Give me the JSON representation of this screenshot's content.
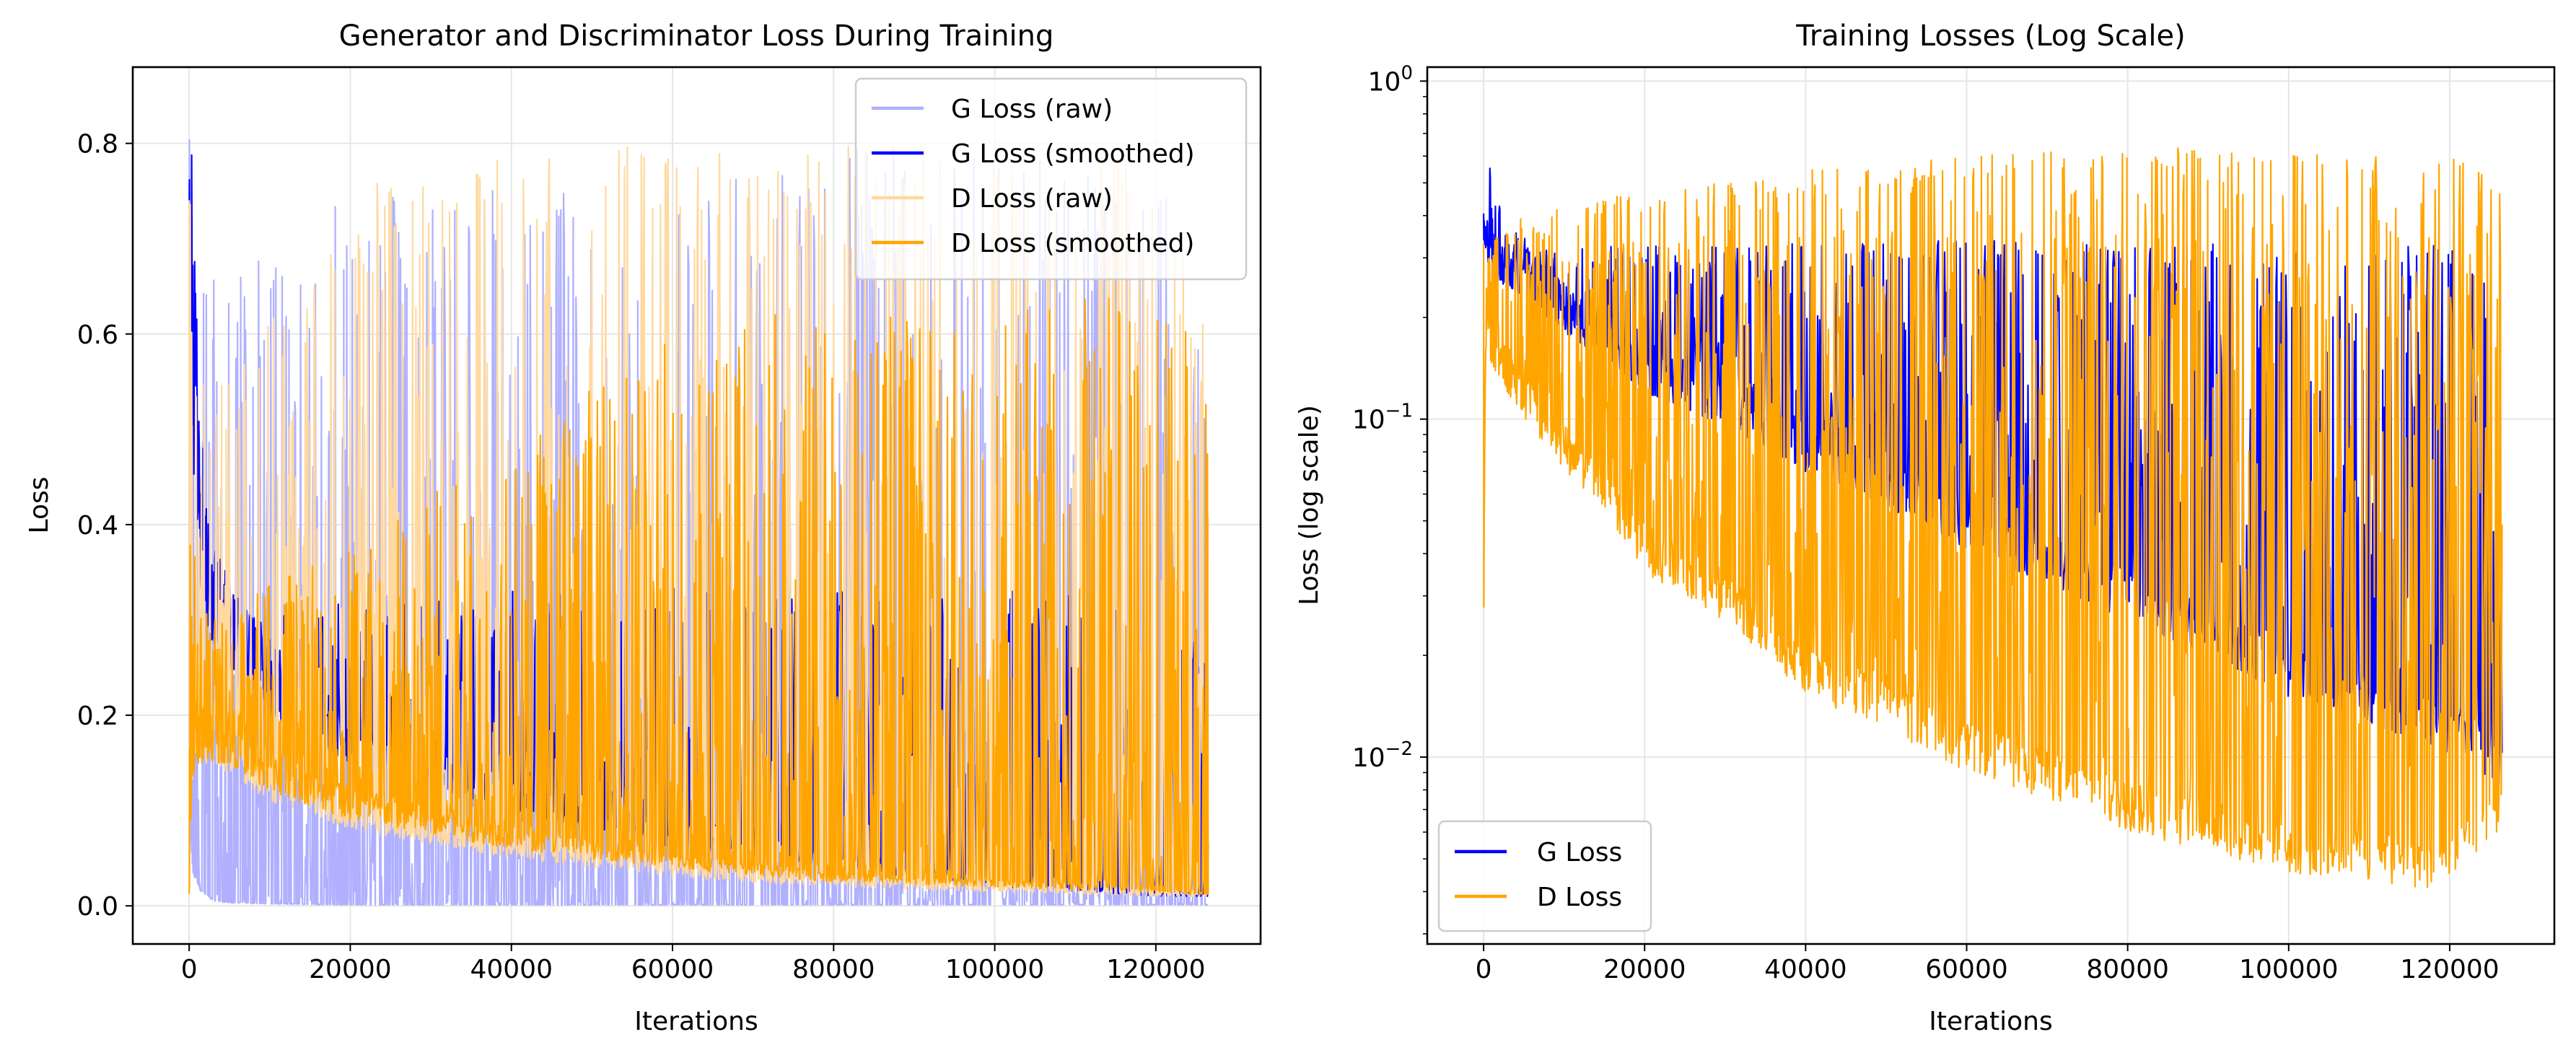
{
  "chart_data": [
    {
      "type": "line",
      "title": "Generator and Discriminator Loss During Training",
      "xlabel": "Iterations",
      "ylabel": "Loss",
      "xlim": [
        -7000,
        133000
      ],
      "ylim": [
        -0.04,
        0.88
      ],
      "xticks": [
        0,
        20000,
        40000,
        60000,
        80000,
        100000,
        120000
      ],
      "xtick_labels": [
        "0",
        "20000",
        "40000",
        "60000",
        "80000",
        "100000",
        "120000"
      ],
      "yticks": [
        0.0,
        0.2,
        0.4,
        0.6,
        0.8
      ],
      "ytick_labels": [
        "0.0",
        "0.2",
        "0.4",
        "0.6",
        "0.8"
      ],
      "grid": true,
      "legend_position": "top-right",
      "series": [
        {
          "name": "G Loss (raw)",
          "color": "#b0b0ff",
          "x": [
            0,
            200,
            500,
            1000,
            2000,
            3000,
            5000,
            10000,
            20000,
            40000,
            60000,
            80000,
            100000,
            120000,
            126500
          ],
          "peak": [
            0.81,
            0.81,
            0.78,
            0.72,
            0.68,
            0.66,
            0.67,
            0.68,
            0.75,
            0.76,
            0.74,
            0.8,
            0.79,
            0.8,
            0.58
          ],
          "floor": [
            0.12,
            0.05,
            0.03,
            0.02,
            0.01,
            0.005,
            0.003,
            0.002,
            0.001,
            0.001,
            0.001,
            0.001,
            0.001,
            0.001,
            0.001
          ]
        },
        {
          "name": "G Loss (smoothed)",
          "color": "#0000ff",
          "x": [
            0,
            300,
            800,
            1500,
            2500,
            4000,
            6000,
            10000,
            20000,
            40000,
            60000,
            80000,
            100000,
            120000,
            126500
          ],
          "peak": [
            0.81,
            0.8,
            0.66,
            0.5,
            0.42,
            0.36,
            0.32,
            0.31,
            0.32,
            0.33,
            0.34,
            0.33,
            0.33,
            0.33,
            0.28
          ],
          "floor": [
            0.56,
            0.5,
            0.4,
            0.33,
            0.28,
            0.26,
            0.24,
            0.2,
            0.15,
            0.1,
            0.06,
            0.04,
            0.02,
            0.01,
            0.01
          ]
        },
        {
          "name": "D Loss (raw)",
          "color": "#ffd9a0",
          "x": [
            0,
            200,
            500,
            1000,
            2000,
            5000,
            10000,
            20000,
            40000,
            60000,
            80000,
            100000,
            120000,
            126500
          ],
          "peak": [
            0.84,
            0.7,
            0.6,
            0.56,
            0.55,
            0.55,
            0.62,
            0.76,
            0.8,
            0.8,
            0.8,
            0.78,
            0.8,
            0.6
          ],
          "floor": [
            0.01,
            0.1,
            0.15,
            0.16,
            0.15,
            0.14,
            0.11,
            0.08,
            0.05,
            0.03,
            0.02,
            0.015,
            0.01,
            0.01
          ]
        },
        {
          "name": "D Loss (smoothed)",
          "color": "#ffa500",
          "x": [
            0,
            300,
            1000,
            2000,
            5000,
            10000,
            20000,
            40000,
            60000,
            80000,
            100000,
            120000,
            126500
          ],
          "peak": [
            0.37,
            0.47,
            0.36,
            0.32,
            0.3,
            0.34,
            0.38,
            0.49,
            0.6,
            0.64,
            0.62,
            0.66,
            0.58
          ],
          "floor": [
            0.01,
            0.12,
            0.15,
            0.15,
            0.15,
            0.12,
            0.09,
            0.06,
            0.04,
            0.025,
            0.02,
            0.015,
            0.01
          ]
        }
      ]
    },
    {
      "type": "line",
      "title": "Training Losses (Log Scale)",
      "xlabel": "Iterations",
      "ylabel": "Loss (log scale)",
      "yscale": "log",
      "xlim": [
        -7000,
        133000
      ],
      "ylim": [
        0.0028,
        1.1
      ],
      "xticks": [
        0,
        20000,
        40000,
        60000,
        80000,
        100000,
        120000
      ],
      "xtick_labels": [
        "0",
        "20000",
        "40000",
        "60000",
        "80000",
        "100000",
        "120000"
      ],
      "yticks": [
        0.01,
        0.1,
        1
      ],
      "ytick_labels": [
        [
          "10",
          "−2"
        ],
        [
          "10",
          "−1"
        ],
        [
          "10",
          "0"
        ]
      ],
      "grid": true,
      "legend_position": "bottom-left",
      "series": [
        {
          "name": "G Loss",
          "color": "#0000ff",
          "x": [
            0,
            300,
            800,
            1500,
            2500,
            4000,
            6000,
            10000,
            20000,
            40000,
            60000,
            80000,
            100000,
            120000,
            126500
          ],
          "peak": [
            0.8,
            0.78,
            0.55,
            0.45,
            0.4,
            0.36,
            0.33,
            0.32,
            0.33,
            0.33,
            0.34,
            0.33,
            0.33,
            0.33,
            0.28
          ],
          "floor": [
            0.3,
            0.28,
            0.27,
            0.26,
            0.25,
            0.24,
            0.22,
            0.18,
            0.12,
            0.07,
            0.04,
            0.025,
            0.015,
            0.01,
            0.008
          ]
        },
        {
          "name": "D Loss",
          "color": "#ffa500",
          "x": [
            0,
            300,
            800,
            2000,
            5000,
            10000,
            20000,
            40000,
            60000,
            80000,
            100000,
            120000,
            126500
          ],
          "peak": [
            0.38,
            0.3,
            0.33,
            0.36,
            0.4,
            0.42,
            0.5,
            0.55,
            0.6,
            0.65,
            0.62,
            0.6,
            0.5
          ],
          "floor": [
            0.01,
            0.16,
            0.15,
            0.13,
            0.1,
            0.07,
            0.035,
            0.015,
            0.009,
            0.006,
            0.0045,
            0.004,
            0.006
          ]
        }
      ]
    }
  ]
}
